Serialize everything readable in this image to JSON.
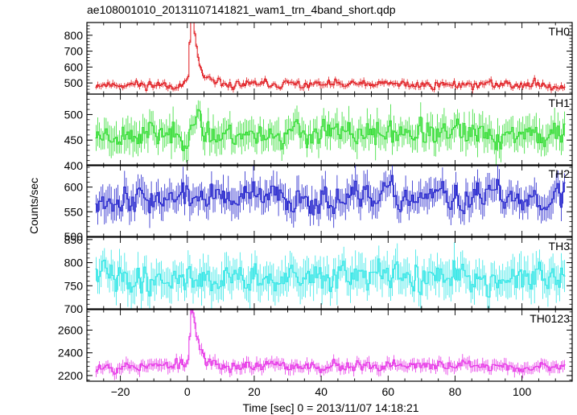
{
  "chart_data": {
    "type": "line",
    "title": "ae108001010_20131107141821_wam1_trn_4band_short.qdp",
    "xlabel": "Time [sec] 0 = 2013/11/07 14:18:21",
    "ylabel": "Counts/sec",
    "xlim": [
      -30,
      115
    ],
    "x_ticks": [
      -20,
      0,
      20,
      40,
      60,
      80,
      100
    ],
    "time_start": -27.5,
    "bin_width": 0.5,
    "panels": [
      {
        "name": "TH0",
        "color": "#e0191e",
        "ylim": [
          430,
          880
        ],
        "y_ticks": [
          500,
          600,
          700,
          800
        ],
        "baseline": 490,
        "noise": 22,
        "error": 18,
        "peak": 370,
        "peak_width": 1.4,
        "seed": 11
      },
      {
        "name": "TH1",
        "color": "#33dd33",
        "ylim": [
          400,
          540
        ],
        "y_ticks": [
          400,
          450,
          500
        ],
        "baseline": 462,
        "noise": 20,
        "error": 25,
        "peak": 20,
        "peak_width": 2,
        "seed": 23
      },
      {
        "name": "TH2",
        "color": "#2222cc",
        "ylim": [
          500,
          645
        ],
        "y_ticks": [
          500,
          550,
          600
        ],
        "baseline": 578,
        "noise": 22,
        "error": 26,
        "peak": 0,
        "peak_width": 2,
        "seed": 37
      },
      {
        "name": "TH3",
        "color": "#33e6e6",
        "ylim": [
          700,
          855
        ],
        "y_ticks": [
          700,
          750,
          800,
          850
        ],
        "baseline": 767,
        "noise": 25,
        "error": 32,
        "peak": 0,
        "peak_width": 2,
        "seed": 41
      },
      {
        "name": "TH0123",
        "color": "#e633e6",
        "ylim": [
          2150,
          2780
        ],
        "y_ticks": [
          2200,
          2400,
          2600
        ],
        "baseline": 2285,
        "noise": 40,
        "error": 45,
        "peak": 410,
        "peak_width": 1.6,
        "seed": 53
      }
    ]
  }
}
